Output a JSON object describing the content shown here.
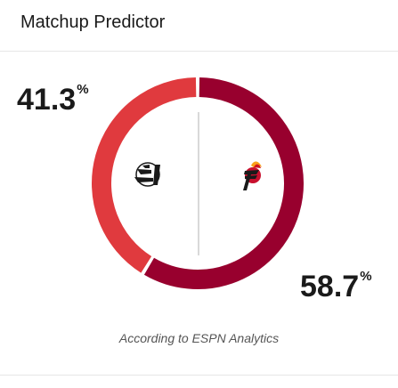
{
  "header": {
    "title": "Matchup Predictor"
  },
  "teams": [
    {
      "name": "Portland Trail Blazers",
      "logo_icon": "trail-blazers-logo-icon",
      "win_pct": 41.3,
      "win_pct_label": "41.3",
      "color": "#e03a3e"
    },
    {
      "name": "Miami Heat",
      "logo_icon": "heat-logo-icon",
      "win_pct": 58.7,
      "win_pct_label": "58.7",
      "color": "#98002e"
    }
  ],
  "percent_symbol": "%",
  "footer": {
    "source": "According to ESPN Analytics"
  }
}
